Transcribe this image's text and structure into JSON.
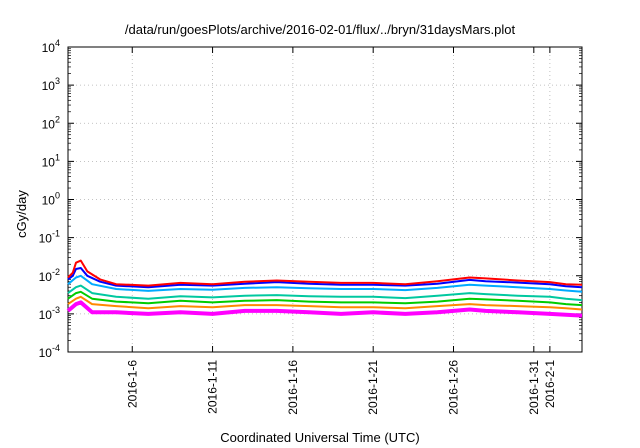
{
  "chart_data": {
    "type": "line",
    "title": "/data/run/goesPlots/archive/2016-02-01/flux/../bryn/31daysMars.plot",
    "xlabel": "Coordinated Universal Time (UTC)",
    "ylabel": "cGy/day",
    "yscale": "log",
    "ylim": [
      0.0001,
      10000
    ],
    "y_ticks": [
      {
        "base": "10",
        "exp": "-4"
      },
      {
        "base": "10",
        "exp": "-3"
      },
      {
        "base": "10",
        "exp": "-2"
      },
      {
        "base": "10",
        "exp": "-1"
      },
      {
        "base": "10",
        "exp": "0"
      },
      {
        "base": "10",
        "exp": "1"
      },
      {
        "base": "10",
        "exp": "2"
      },
      {
        "base": "10",
        "exp": "3"
      },
      {
        "base": "10",
        "exp": "4"
      }
    ],
    "xlim": [
      "2016-01-02",
      "2016-02-03"
    ],
    "x_ticks": [
      "2016-1-6",
      "2016-1-11",
      "2016-1-16",
      "2016-1-21",
      "2016-1-26",
      "2016-1-31",
      "2016-2-1"
    ],
    "grid": true,
    "series": [
      {
        "color": "#ff0000",
        "values": [
          [
            0.0,
            0.009
          ],
          [
            0.3,
            0.012
          ],
          [
            0.5,
            0.022
          ],
          [
            0.8,
            0.025
          ],
          [
            1.2,
            0.013
          ],
          [
            2.0,
            0.008
          ],
          [
            3,
            0.006
          ],
          [
            5,
            0.0055
          ],
          [
            7,
            0.0065
          ],
          [
            9,
            0.006
          ],
          [
            11,
            0.007
          ],
          [
            13,
            0.0075
          ],
          [
            15,
            0.007
          ],
          [
            17,
            0.0065
          ],
          [
            19,
            0.0065
          ],
          [
            21,
            0.006
          ],
          [
            23,
            0.0072
          ],
          [
            25,
            0.009
          ],
          [
            26,
            0.0085
          ],
          [
            28,
            0.0075
          ],
          [
            30,
            0.0068
          ],
          [
            31,
            0.006
          ],
          [
            32,
            0.0058
          ]
        ]
      },
      {
        "color": "#0000ff",
        "values": [
          [
            0.0,
            0.008
          ],
          [
            0.3,
            0.01
          ],
          [
            0.5,
            0.015
          ],
          [
            0.8,
            0.016
          ],
          [
            1.2,
            0.01
          ],
          [
            2.0,
            0.007
          ],
          [
            3,
            0.0055
          ],
          [
            5,
            0.005
          ],
          [
            7,
            0.0058
          ],
          [
            9,
            0.0055
          ],
          [
            11,
            0.0062
          ],
          [
            13,
            0.0068
          ],
          [
            15,
            0.0062
          ],
          [
            17,
            0.0058
          ],
          [
            19,
            0.0058
          ],
          [
            21,
            0.0055
          ],
          [
            23,
            0.0062
          ],
          [
            25,
            0.0078
          ],
          [
            26,
            0.0072
          ],
          [
            28,
            0.0066
          ],
          [
            30,
            0.006
          ],
          [
            31,
            0.0053
          ],
          [
            32,
            0.005
          ]
        ]
      },
      {
        "color": "#00aaff",
        "values": [
          [
            0.0,
            0.006
          ],
          [
            0.5,
            0.009
          ],
          [
            0.8,
            0.01
          ],
          [
            1.5,
            0.006
          ],
          [
            3,
            0.0045
          ],
          [
            5,
            0.004
          ],
          [
            7,
            0.0045
          ],
          [
            9,
            0.0043
          ],
          [
            11,
            0.0048
          ],
          [
            13,
            0.005
          ],
          [
            15,
            0.0047
          ],
          [
            17,
            0.0045
          ],
          [
            19,
            0.0045
          ],
          [
            21,
            0.0042
          ],
          [
            23,
            0.0048
          ],
          [
            25,
            0.0058
          ],
          [
            26,
            0.0055
          ],
          [
            28,
            0.005
          ],
          [
            30,
            0.0045
          ],
          [
            31,
            0.0041
          ],
          [
            32,
            0.0038
          ]
        ]
      },
      {
        "color": "#00c8a0",
        "values": [
          [
            0.0,
            0.0035
          ],
          [
            0.5,
            0.005
          ],
          [
            0.8,
            0.0055
          ],
          [
            1.5,
            0.0035
          ],
          [
            3,
            0.0028
          ],
          [
            5,
            0.0025
          ],
          [
            7,
            0.0029
          ],
          [
            9,
            0.0027
          ],
          [
            11,
            0.003
          ],
          [
            13,
            0.0031
          ],
          [
            15,
            0.0029
          ],
          [
            17,
            0.0028
          ],
          [
            19,
            0.0028
          ],
          [
            21,
            0.0026
          ],
          [
            23,
            0.003
          ],
          [
            25,
            0.0035
          ],
          [
            26,
            0.0033
          ],
          [
            28,
            0.003
          ],
          [
            30,
            0.0028
          ],
          [
            31,
            0.0025
          ],
          [
            32,
            0.0023
          ]
        ]
      },
      {
        "color": "#00cc00",
        "values": [
          [
            0.0,
            0.0025
          ],
          [
            0.5,
            0.0035
          ],
          [
            0.8,
            0.0038
          ],
          [
            1.5,
            0.0025
          ],
          [
            3,
            0.0021
          ],
          [
            5,
            0.0019
          ],
          [
            7,
            0.0022
          ],
          [
            9,
            0.002
          ],
          [
            11,
            0.0022
          ],
          [
            13,
            0.0023
          ],
          [
            15,
            0.0021
          ],
          [
            17,
            0.002
          ],
          [
            19,
            0.002
          ],
          [
            21,
            0.0019
          ],
          [
            23,
            0.0021
          ],
          [
            25,
            0.0025
          ],
          [
            26,
            0.0024
          ],
          [
            28,
            0.0022
          ],
          [
            30,
            0.002
          ],
          [
            31,
            0.0018
          ],
          [
            32,
            0.0017
          ]
        ]
      },
      {
        "color": "#ff8800",
        "values": [
          [
            0.0,
            0.0018
          ],
          [
            0.5,
            0.0025
          ],
          [
            0.8,
            0.0028
          ],
          [
            1.5,
            0.0018
          ],
          [
            3,
            0.0016
          ],
          [
            5,
            0.0014
          ],
          [
            7,
            0.0016
          ],
          [
            9,
            0.0015
          ],
          [
            11,
            0.0017
          ],
          [
            13,
            0.0017
          ],
          [
            15,
            0.0016
          ],
          [
            17,
            0.0015
          ],
          [
            19,
            0.0015
          ],
          [
            21,
            0.0014
          ],
          [
            23,
            0.0016
          ],
          [
            25,
            0.0018
          ],
          [
            26,
            0.0017
          ],
          [
            28,
            0.0016
          ],
          [
            30,
            0.0015
          ],
          [
            31,
            0.0014
          ],
          [
            32,
            0.0013
          ]
        ]
      },
      {
        "color": "#ff00ff",
        "values": [
          [
            0.0,
            0.0012
          ],
          [
            0.5,
            0.0018
          ],
          [
            0.8,
            0.002
          ],
          [
            1.5,
            0.0011
          ],
          [
            3,
            0.0011
          ],
          [
            5,
            0.001
          ],
          [
            7,
            0.0011
          ],
          [
            9,
            0.001
          ],
          [
            11,
            0.0012
          ],
          [
            13,
            0.0012
          ],
          [
            15,
            0.0011
          ],
          [
            17,
            0.001
          ],
          [
            19,
            0.0011
          ],
          [
            21,
            0.001
          ],
          [
            23,
            0.0011
          ],
          [
            25,
            0.0013
          ],
          [
            26,
            0.0012
          ],
          [
            28,
            0.0011
          ],
          [
            30,
            0.001
          ],
          [
            31,
            0.00095
          ],
          [
            32,
            0.0009
          ]
        ]
      }
    ]
  }
}
